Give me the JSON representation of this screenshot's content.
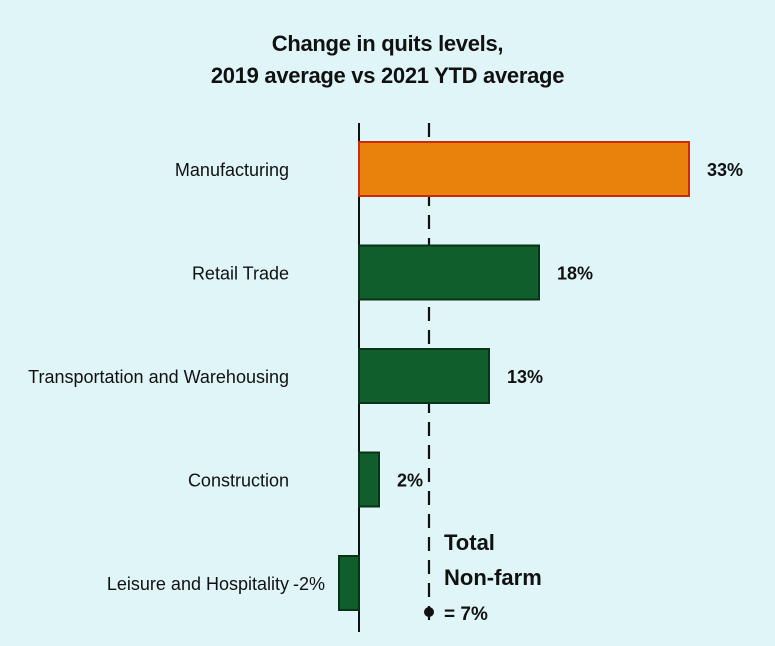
{
  "chart_data": {
    "type": "bar",
    "orientation": "horizontal",
    "title_lines": [
      "Change in quits levels,",
      "2019 average vs 2021 YTD average"
    ],
    "xlabel": "",
    "ylabel": "",
    "unit": "%",
    "xlim": [
      -3,
      35
    ],
    "grid": false,
    "categories": [
      "Manufacturing",
      "Retail Trade",
      "Transportation and Warehousing",
      "Construction",
      "Leisure and Hospitality"
    ],
    "values": [
      33,
      18,
      13,
      2,
      -2
    ],
    "value_labels": [
      "33%",
      "18%",
      "13%",
      "2%",
      "-2%"
    ],
    "highlight_category": "Manufacturing",
    "reference_line": {
      "value": 7,
      "label_lines": [
        "Total",
        "Non-farm",
        "= 7%"
      ]
    }
  },
  "colors": {
    "background": "#dff5f7",
    "highlight_fill": "#e8820c",
    "highlight_stroke": "#cc2a0e",
    "bar_fill": "#0f5e2b",
    "bar_stroke": "#0a3216",
    "axis": "#111111",
    "text": "#111111"
  }
}
